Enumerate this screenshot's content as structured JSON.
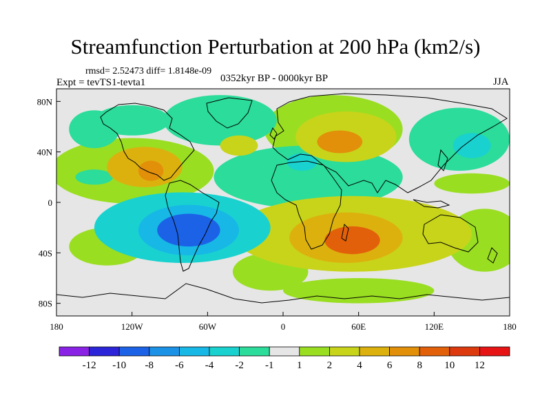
{
  "title": "Streamfunction Perturbation at 200 hPa (km2/s)",
  "stats": "rmsd= 2.52473 diff= 1.8148e-09",
  "experiment": "Expt = tevTS1-tevta1",
  "period": "0352kyr BP - 0000kyr BP",
  "season": "JJA",
  "x_ticks": [
    {
      "value": -180,
      "label": "180"
    },
    {
      "value": -120,
      "label": "120W"
    },
    {
      "value": -60,
      "label": "60W"
    },
    {
      "value": 0,
      "label": "0"
    },
    {
      "value": 60,
      "label": "60E"
    },
    {
      "value": 120,
      "label": "120E"
    },
    {
      "value": 180,
      "label": "180"
    }
  ],
  "y_ticks": [
    {
      "value": 80,
      "label": "80N"
    },
    {
      "value": 40,
      "label": "40N"
    },
    {
      "value": 0,
      "label": "0"
    },
    {
      "value": -40,
      "label": "40S"
    },
    {
      "value": -80,
      "label": "80S"
    }
  ],
  "colorbar": {
    "labels": [
      "-12",
      "-10",
      "-8",
      "-6",
      "-4",
      "-2",
      "-1",
      "1",
      "2",
      "4",
      "6",
      "8",
      "10",
      "12"
    ],
    "colors": [
      "#8a22e6",
      "#2c24d8",
      "#1c62e6",
      "#1c92e6",
      "#17b8e6",
      "#19d2cf",
      "#2bdc9a",
      "#e6e6e6",
      "#9ade22",
      "#c8d41a",
      "#dcb10e",
      "#e2900a",
      "#e2600a",
      "#dc3a0e",
      "#e61414"
    ]
  },
  "anomalies": [
    {
      "lon": -75,
      "lat": -22,
      "level": -9,
      "rlon": 25,
      "rlat": 13
    },
    {
      "lon": -75,
      "lat": -22,
      "level": -6,
      "rlon": 40,
      "rlat": 20
    },
    {
      "lon": -80,
      "lat": -20,
      "level": -3,
      "rlon": 70,
      "rlat": 28
    },
    {
      "lon": -105,
      "lat": 25,
      "level": 7,
      "rlon": 10,
      "rlat": 8
    },
    {
      "lon": -110,
      "lat": 28,
      "level": 4,
      "rlon": 30,
      "rlat": 16
    },
    {
      "lon": -120,
      "lat": 25,
      "level": 1.5,
      "rlon": 65,
      "rlat": 26
    },
    {
      "lon": 45,
      "lat": 48,
      "level": 6,
      "rlon": 18,
      "rlat": 9
    },
    {
      "lon": 50,
      "lat": 52,
      "level": 3,
      "rlon": 40,
      "rlat": 20
    },
    {
      "lon": 40,
      "lat": 58,
      "level": 1.5,
      "rlon": 55,
      "rlat": 27
    },
    {
      "lon": 55,
      "lat": -30,
      "level": 8,
      "rlon": 22,
      "rlat": 11
    },
    {
      "lon": 50,
      "lat": -28,
      "level": 5,
      "rlon": 45,
      "rlat": 20
    },
    {
      "lon": 55,
      "lat": -25,
      "level": 2,
      "rlon": 95,
      "rlat": 30
    },
    {
      "lon": 15,
      "lat": 32,
      "level": -4,
      "rlon": 12,
      "rlat": 7
    },
    {
      "lon": 25,
      "lat": 25,
      "level": -2,
      "rlon": 45,
      "rlat": 18
    },
    {
      "lon": 20,
      "lat": 20,
      "level": -1.5,
      "rlon": 75,
      "rlat": 25
    },
    {
      "lon": -50,
      "lat": 65,
      "level": -1.5,
      "rlon": 45,
      "rlat": 20
    },
    {
      "lon": 150,
      "lat": 45,
      "level": -4,
      "rlon": 15,
      "rlat": 10
    },
    {
      "lon": 140,
      "lat": 50,
      "level": -1.5,
      "rlon": 40,
      "rlat": 25
    },
    {
      "lon": 150,
      "lat": 15,
      "level": 1.5,
      "rlon": 30,
      "rlat": 8
    },
    {
      "lon": -35,
      "lat": 45,
      "level": 3,
      "rlon": 15,
      "rlat": 8
    },
    {
      "lon": -150,
      "lat": 58,
      "level": -1.5,
      "rlon": 20,
      "rlat": 15
    },
    {
      "lon": -120,
      "lat": 65,
      "level": -1.5,
      "rlon": 30,
      "rlat": 12
    },
    {
      "lon": -150,
      "lat": 20,
      "level": -1.5,
      "rlon": 15,
      "rlat": 6
    },
    {
      "lon": 160,
      "lat": -30,
      "level": 1.5,
      "rlon": 30,
      "rlat": 25
    },
    {
      "lon": -140,
      "lat": -35,
      "level": 1.5,
      "rlon": 30,
      "rlat": 15
    },
    {
      "lon": -10,
      "lat": -55,
      "level": 1.5,
      "rlon": 30,
      "rlat": 15
    },
    {
      "lon": 60,
      "lat": -70,
      "level": 1.5,
      "rlon": 60,
      "rlat": 10
    }
  ]
}
